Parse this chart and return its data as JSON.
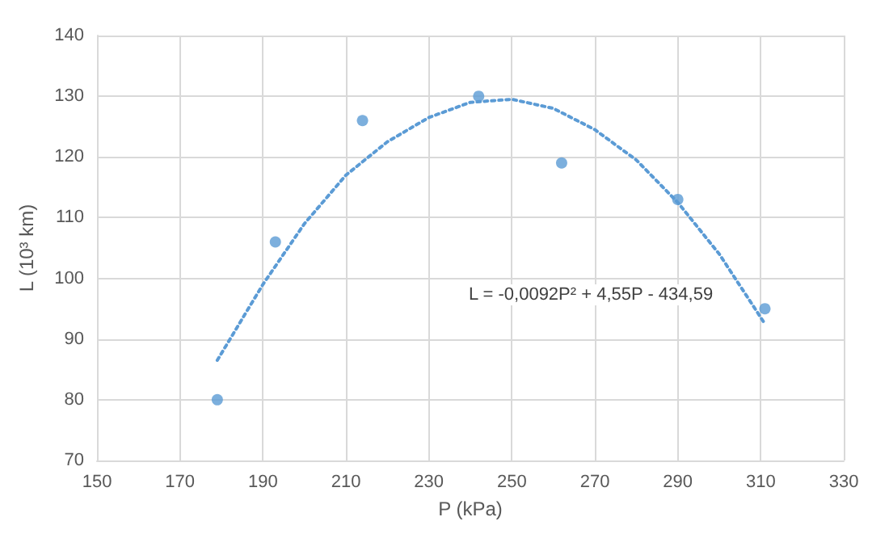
{
  "chart_data": {
    "type": "scatter",
    "xlabel": "P (kPa)",
    "ylabel": "L (10³ km)",
    "x": [
      179,
      193,
      214,
      242,
      262,
      290,
      311
    ],
    "series": [
      {
        "color": "#5b9bd5",
        "marker": "circle",
        "values": [
          80,
          106,
          126,
          130,
          119,
          113,
          95
        ]
      },
      {
        "type": "line",
        "color": "#5b9bd5",
        "marker": "none",
        "line_style": "dotted",
        "x": [
          179,
          190,
          200,
          210,
          220,
          230,
          240,
          250,
          260,
          270,
          280,
          290,
          300,
          311
        ],
        "values": [
          86.5,
          99,
          109,
          117,
          122.5,
          126.5,
          129,
          129.5,
          128,
          124.5,
          119.5,
          112.5,
          104,
          92.5
        ]
      }
    ],
    "xlim": [
      150,
      330
    ],
    "xticks": [
      150,
      170,
      190,
      210,
      230,
      250,
      270,
      290,
      310,
      330
    ],
    "ylim": [
      70,
      140
    ],
    "yticks": [
      70,
      80,
      90,
      100,
      110,
      120,
      130,
      140
    ],
    "grid": true,
    "annotations": [
      "L = -0,0092P² + 4,55P - 434,59"
    ]
  }
}
